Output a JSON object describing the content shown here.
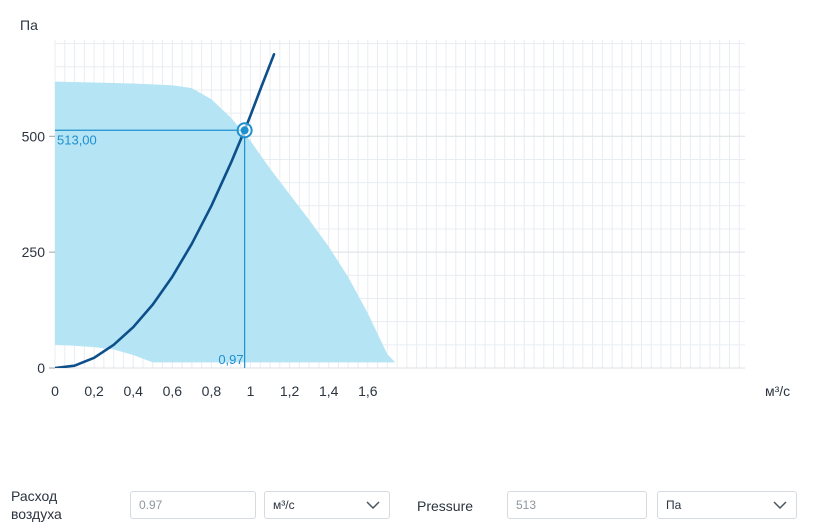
{
  "chart_data": {
    "type": "line",
    "ylabel": "Па",
    "xlabel": "м³/с",
    "xlim": [
      0,
      1.77
    ],
    "ylim": [
      0,
      625
    ],
    "x_ticks": [
      {
        "value": 0,
        "label": "0"
      },
      {
        "value": 0.2,
        "label": "0,2"
      },
      {
        "value": 0.4,
        "label": "0,4"
      },
      {
        "value": 0.6,
        "label": "0,6"
      },
      {
        "value": 0.8,
        "label": "0,8"
      },
      {
        "value": 1.0,
        "label": "1"
      },
      {
        "value": 1.2,
        "label": "1,2"
      },
      {
        "value": 1.4,
        "label": "1,4"
      },
      {
        "value": 1.6,
        "label": "1,6"
      }
    ],
    "y_ticks": [
      {
        "value": 0,
        "label": "0"
      },
      {
        "value": 250,
        "label": "250"
      },
      {
        "value": 500,
        "label": "500"
      }
    ],
    "operating_range_upper": {
      "x": [
        0,
        0.2,
        0.4,
        0.6,
        0.7,
        0.8,
        0.9,
        1.0,
        1.1,
        1.2,
        1.3,
        1.4,
        1.5,
        1.6,
        1.7,
        1.74
      ],
      "y": [
        618,
        616,
        614,
        610,
        604,
        580,
        540,
        490,
        430,
        375,
        320,
        262,
        196,
        118,
        30,
        12
      ]
    },
    "operating_range_lower": {
      "x": [
        1.74,
        1.6,
        1.4,
        1.2,
        1.0,
        0.8,
        0.6,
        0.5,
        0.4,
        0.3,
        0.2,
        0.1,
        0
      ],
      "y": [
        12,
        12,
        12,
        12,
        12,
        12,
        12,
        12,
        28,
        40,
        45,
        48,
        50
      ]
    },
    "system_curve": {
      "x": [
        0,
        0.1,
        0.2,
        0.3,
        0.4,
        0.5,
        0.6,
        0.7,
        0.8,
        0.9,
        0.97,
        1.0,
        1.05,
        1.12
      ],
      "y": [
        0,
        5,
        22,
        50,
        88,
        137,
        197,
        268,
        350,
        443,
        513,
        545,
        601,
        677
      ]
    },
    "operating_point": {
      "x": 0.97,
      "y": 513,
      "x_label": "0,97",
      "y_label": "513,00"
    },
    "grid": true,
    "colors": {
      "area": "#b5e5f5",
      "curve": "#0d4f8b",
      "guide": "#1e8fcf",
      "grid_minor": "#e8edf1",
      "grid_major": "#dde2e6",
      "point": "#1e8fcf"
    }
  },
  "controls": {
    "airflow_label": "Расход воздуха",
    "airflow_value": "0.97",
    "airflow_unit": "м³/с",
    "pressure_label": "Pressure",
    "pressure_value": "513",
    "pressure_unit": "Па"
  }
}
